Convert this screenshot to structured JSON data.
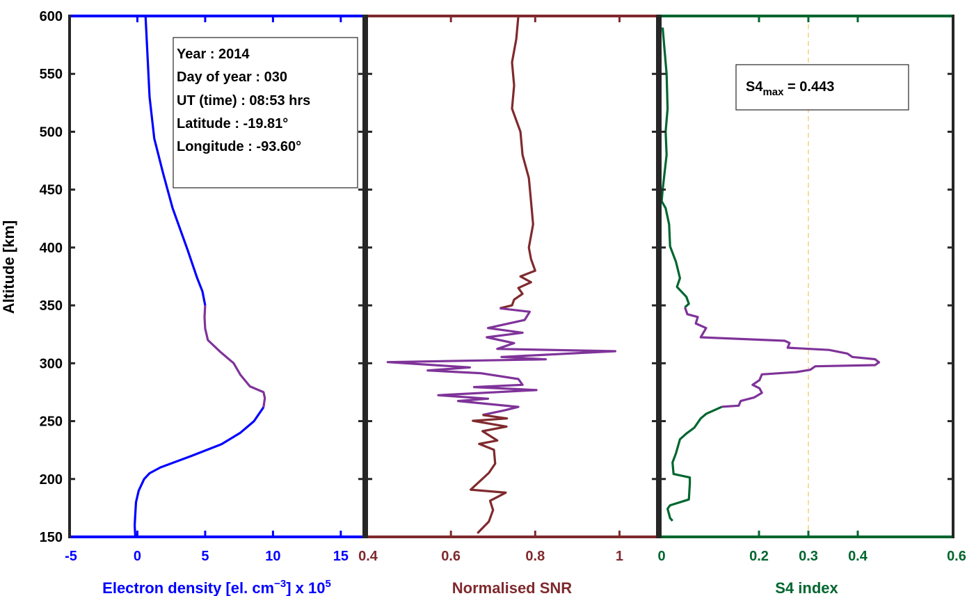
{
  "shared_y_axis": {
    "label": "Altitude [km]",
    "range": [
      150,
      600
    ],
    "ticks": [
      150,
      200,
      250,
      300,
      350,
      400,
      450,
      500,
      550,
      600
    ]
  },
  "colors": {
    "highlight": "#7f3399",
    "frame": "#262626",
    "threshold": "#f5cf7a"
  },
  "info_box": {
    "lines": [
      "Year : 2014",
      "Day of year : 030",
      "UT (time) : 08:53 hrs",
      "Latitude : -19.81°",
      "Longitude : -93.60°"
    ]
  },
  "s4_box": {
    "prefix": "S4",
    "sub": "max",
    "suffix": " = 0.443"
  },
  "chart_data": [
    {
      "type": "line",
      "xlabel_parts": [
        "Electron density [el. cm",
        "−3",
        "] x 10",
        "5"
      ],
      "xlim": [
        -5,
        16.7
      ],
      "xticks": [
        -5,
        0,
        5,
        10,
        15
      ],
      "xtick_labels": [
        "-5",
        "0",
        "5",
        "10",
        "15"
      ],
      "ylim": [
        150,
        600
      ],
      "color": "#0000ff",
      "highlight_altitude_range": [
        270,
        350
      ],
      "points": [
        [
          0.6,
          600
        ],
        [
          0.9,
          530
        ],
        [
          1.25,
          494
        ],
        [
          1.9,
          464
        ],
        [
          2.6,
          434
        ],
        [
          3.7,
          398
        ],
        [
          4.4,
          374
        ],
        [
          4.8,
          362
        ],
        [
          5.0,
          350
        ],
        [
          4.95,
          340
        ],
        [
          5.0,
          330
        ],
        [
          5.2,
          320
        ],
        [
          6.1,
          310
        ],
        [
          7.1,
          300
        ],
        [
          7.6,
          290
        ],
        [
          8.3,
          280
        ],
        [
          9.3,
          275
        ],
        [
          9.4,
          270
        ],
        [
          9.3,
          262
        ],
        [
          8.6,
          250
        ],
        [
          7.6,
          240
        ],
        [
          6.2,
          230
        ],
        [
          4.0,
          220
        ],
        [
          1.7,
          210
        ],
        [
          0.9,
          205
        ],
        [
          0.5,
          200
        ],
        [
          0.1,
          190
        ],
        [
          -0.1,
          180
        ],
        [
          -0.15,
          170
        ],
        [
          -0.2,
          160
        ],
        [
          -0.15,
          150
        ]
      ]
    },
    {
      "type": "line",
      "xlabel": "Normalised SNR",
      "xlim": [
        0.4,
        1.09
      ],
      "xticks": [
        0.4,
        0.6,
        0.8,
        1.0
      ],
      "xtick_labels": [
        "0.4",
        "0.6",
        "0.8",
        "1"
      ],
      "ylim": [
        150,
        600
      ],
      "color": "#7f2a2e",
      "highlight_altitude_range": [
        259,
        348
      ],
      "points": [
        [
          0.76,
          600
        ],
        [
          0.755,
          580
        ],
        [
          0.745,
          560
        ],
        [
          0.75,
          540
        ],
        [
          0.745,
          520
        ],
        [
          0.765,
          500
        ],
        [
          0.77,
          480
        ],
        [
          0.785,
          460
        ],
        [
          0.79,
          440
        ],
        [
          0.795,
          420
        ],
        [
          0.785,
          400
        ],
        [
          0.79,
          390
        ],
        [
          0.8,
          380
        ],
        [
          0.765,
          375
        ],
        [
          0.79,
          370
        ],
        [
          0.76,
          365
        ],
        [
          0.77,
          360
        ],
        [
          0.75,
          355
        ],
        [
          0.745,
          350
        ],
        [
          0.716,
          347.5
        ],
        [
          0.787,
          344.5
        ],
        [
          0.775,
          337.4
        ],
        [
          0.688,
          330.4
        ],
        [
          0.77,
          326.4
        ],
        [
          0.685,
          322.4
        ],
        [
          0.75,
          317.4
        ],
        [
          0.71,
          312.4
        ],
        [
          0.99,
          310.4
        ],
        [
          0.72,
          305.4
        ],
        [
          0.825,
          303.4
        ],
        [
          0.45,
          301.0
        ],
        [
          0.645,
          296.4
        ],
        [
          0.545,
          293.8
        ],
        [
          0.67,
          291.4
        ],
        [
          0.76,
          286.4
        ],
        [
          0.77,
          281.4
        ],
        [
          0.655,
          279.4
        ],
        [
          0.803,
          276.8
        ],
        [
          0.57,
          272.4
        ],
        [
          0.688,
          269.4
        ],
        [
          0.617,
          267.4
        ],
        [
          0.76,
          262.3
        ],
        [
          0.727,
          259.3
        ],
        [
          0.675,
          255.3
        ],
        [
          0.733,
          252.3
        ],
        [
          0.652,
          250.3
        ],
        [
          0.732,
          245.3
        ],
        [
          0.675,
          241.3
        ],
        [
          0.71,
          233.3
        ],
        [
          0.667,
          230.3
        ],
        [
          0.702,
          225.3
        ],
        [
          0.705,
          213.3
        ],
        [
          0.69,
          205.3
        ],
        [
          0.647,
          190.8
        ],
        [
          0.73,
          188.2
        ],
        [
          0.693,
          181.2
        ],
        [
          0.7,
          173.2
        ],
        [
          0.69,
          163.2
        ],
        [
          0.663,
          153.2
        ]
      ]
    },
    {
      "type": "line",
      "xlabel": "S4 index",
      "xlim": [
        0,
        0.593
      ],
      "xticks": [
        0,
        0.2,
        0.3,
        0.4,
        0.6
      ],
      "xtick_labels": [
        "0",
        "0.2",
        "0.3",
        "0.4",
        "0.6"
      ],
      "threshold_x": 0.3,
      "ylim": [
        150,
        600
      ],
      "color": "#00662f",
      "highlight_altitude_range": [
        263,
        348.4
      ],
      "points": [
        [
          0.005,
          590
        ],
        [
          0.013,
          550
        ],
        [
          0.015,
          520
        ],
        [
          0.011,
          500
        ],
        [
          0.013,
          480
        ],
        [
          0.005,
          450
        ],
        [
          0.003,
          440
        ],
        [
          0.011,
          434
        ],
        [
          0.018,
          420
        ],
        [
          0.02,
          401
        ],
        [
          0.032,
          387.5
        ],
        [
          0.04,
          373.5
        ],
        [
          0.034,
          366
        ],
        [
          0.053,
          357.4
        ],
        [
          0.058,
          351.4
        ],
        [
          0.05,
          348.4
        ],
        [
          0.055,
          342.4
        ],
        [
          0.076,
          340
        ],
        [
          0.072,
          334.4
        ],
        [
          0.093,
          330.4
        ],
        [
          0.082,
          322.4
        ],
        [
          0.252,
          319.4
        ],
        [
          0.262,
          317.5
        ],
        [
          0.258,
          313.4
        ],
        [
          0.342,
          311.5
        ],
        [
          0.379,
          308.4
        ],
        [
          0.389,
          305.4
        ],
        [
          0.435,
          303.5
        ],
        [
          0.443,
          300.8
        ],
        [
          0.435,
          298.4
        ],
        [
          0.314,
          297.4
        ],
        [
          0.304,
          294.4
        ],
        [
          0.276,
          292.4
        ],
        [
          0.206,
          290.4
        ],
        [
          0.201,
          285.4
        ],
        [
          0.187,
          281.4
        ],
        [
          0.201,
          278.4
        ],
        [
          0.206,
          274.4
        ],
        [
          0.19,
          270.4
        ],
        [
          0.163,
          267.4
        ],
        [
          0.159,
          263.4
        ],
        [
          0.125,
          262.4
        ],
        [
          0.093,
          256.3
        ],
        [
          0.082,
          252.3
        ],
        [
          0.069,
          244.3
        ],
        [
          0.053,
          239.3
        ],
        [
          0.04,
          234.3
        ],
        [
          0.032,
          222.3
        ],
        [
          0.025,
          214.3
        ],
        [
          0.027,
          204.3
        ],
        [
          0.06,
          201.3
        ],
        [
          0.06,
          196.3
        ],
        [
          0.058,
          182.3
        ],
        [
          0.02,
          177.3
        ],
        [
          0.015,
          174.3
        ],
        [
          0.02,
          166.3
        ],
        [
          0.025,
          163.9
        ]
      ]
    }
  ]
}
